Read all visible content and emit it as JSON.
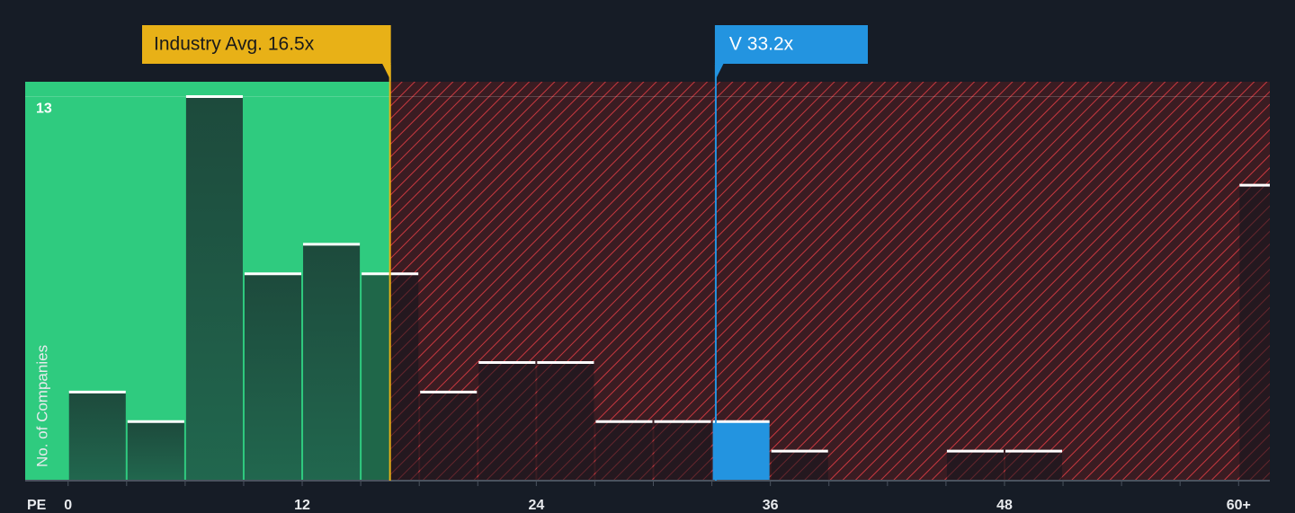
{
  "chart_data": {
    "type": "histogram",
    "x_label": "PE",
    "y_label": "No. of Companies",
    "bins": [
      0,
      3,
      6,
      9,
      12,
      15,
      18,
      21,
      24,
      27,
      30,
      33,
      36,
      39,
      42,
      45,
      48,
      51,
      54,
      57,
      60,
      63
    ],
    "values": [
      3,
      2,
      13,
      7,
      8,
      7,
      3,
      4,
      4,
      2,
      2,
      2,
      1,
      0,
      0,
      1,
      1,
      0,
      0,
      0,
      10
    ],
    "highlight_bin_color": "#2394e0",
    "highlight_value": 33.2,
    "bar_color": "rgba(18,22,30,0.55)",
    "xlim": [
      -2.2,
      61.6
    ],
    "ylim": [
      0,
      13.5
    ],
    "xticks": [
      0,
      12,
      24,
      36,
      48,
      {
        "value": 60,
        "label": "60+"
      }
    ],
    "yticks": [
      13
    ],
    "annotations": [
      {
        "label": "Industry Avg. 16.5x",
        "value": 16.5,
        "color": "#e8b117"
      },
      {
        "label": "V 33.2x",
        "value": 33.2,
        "color": "#2394e0"
      }
    ]
  }
}
